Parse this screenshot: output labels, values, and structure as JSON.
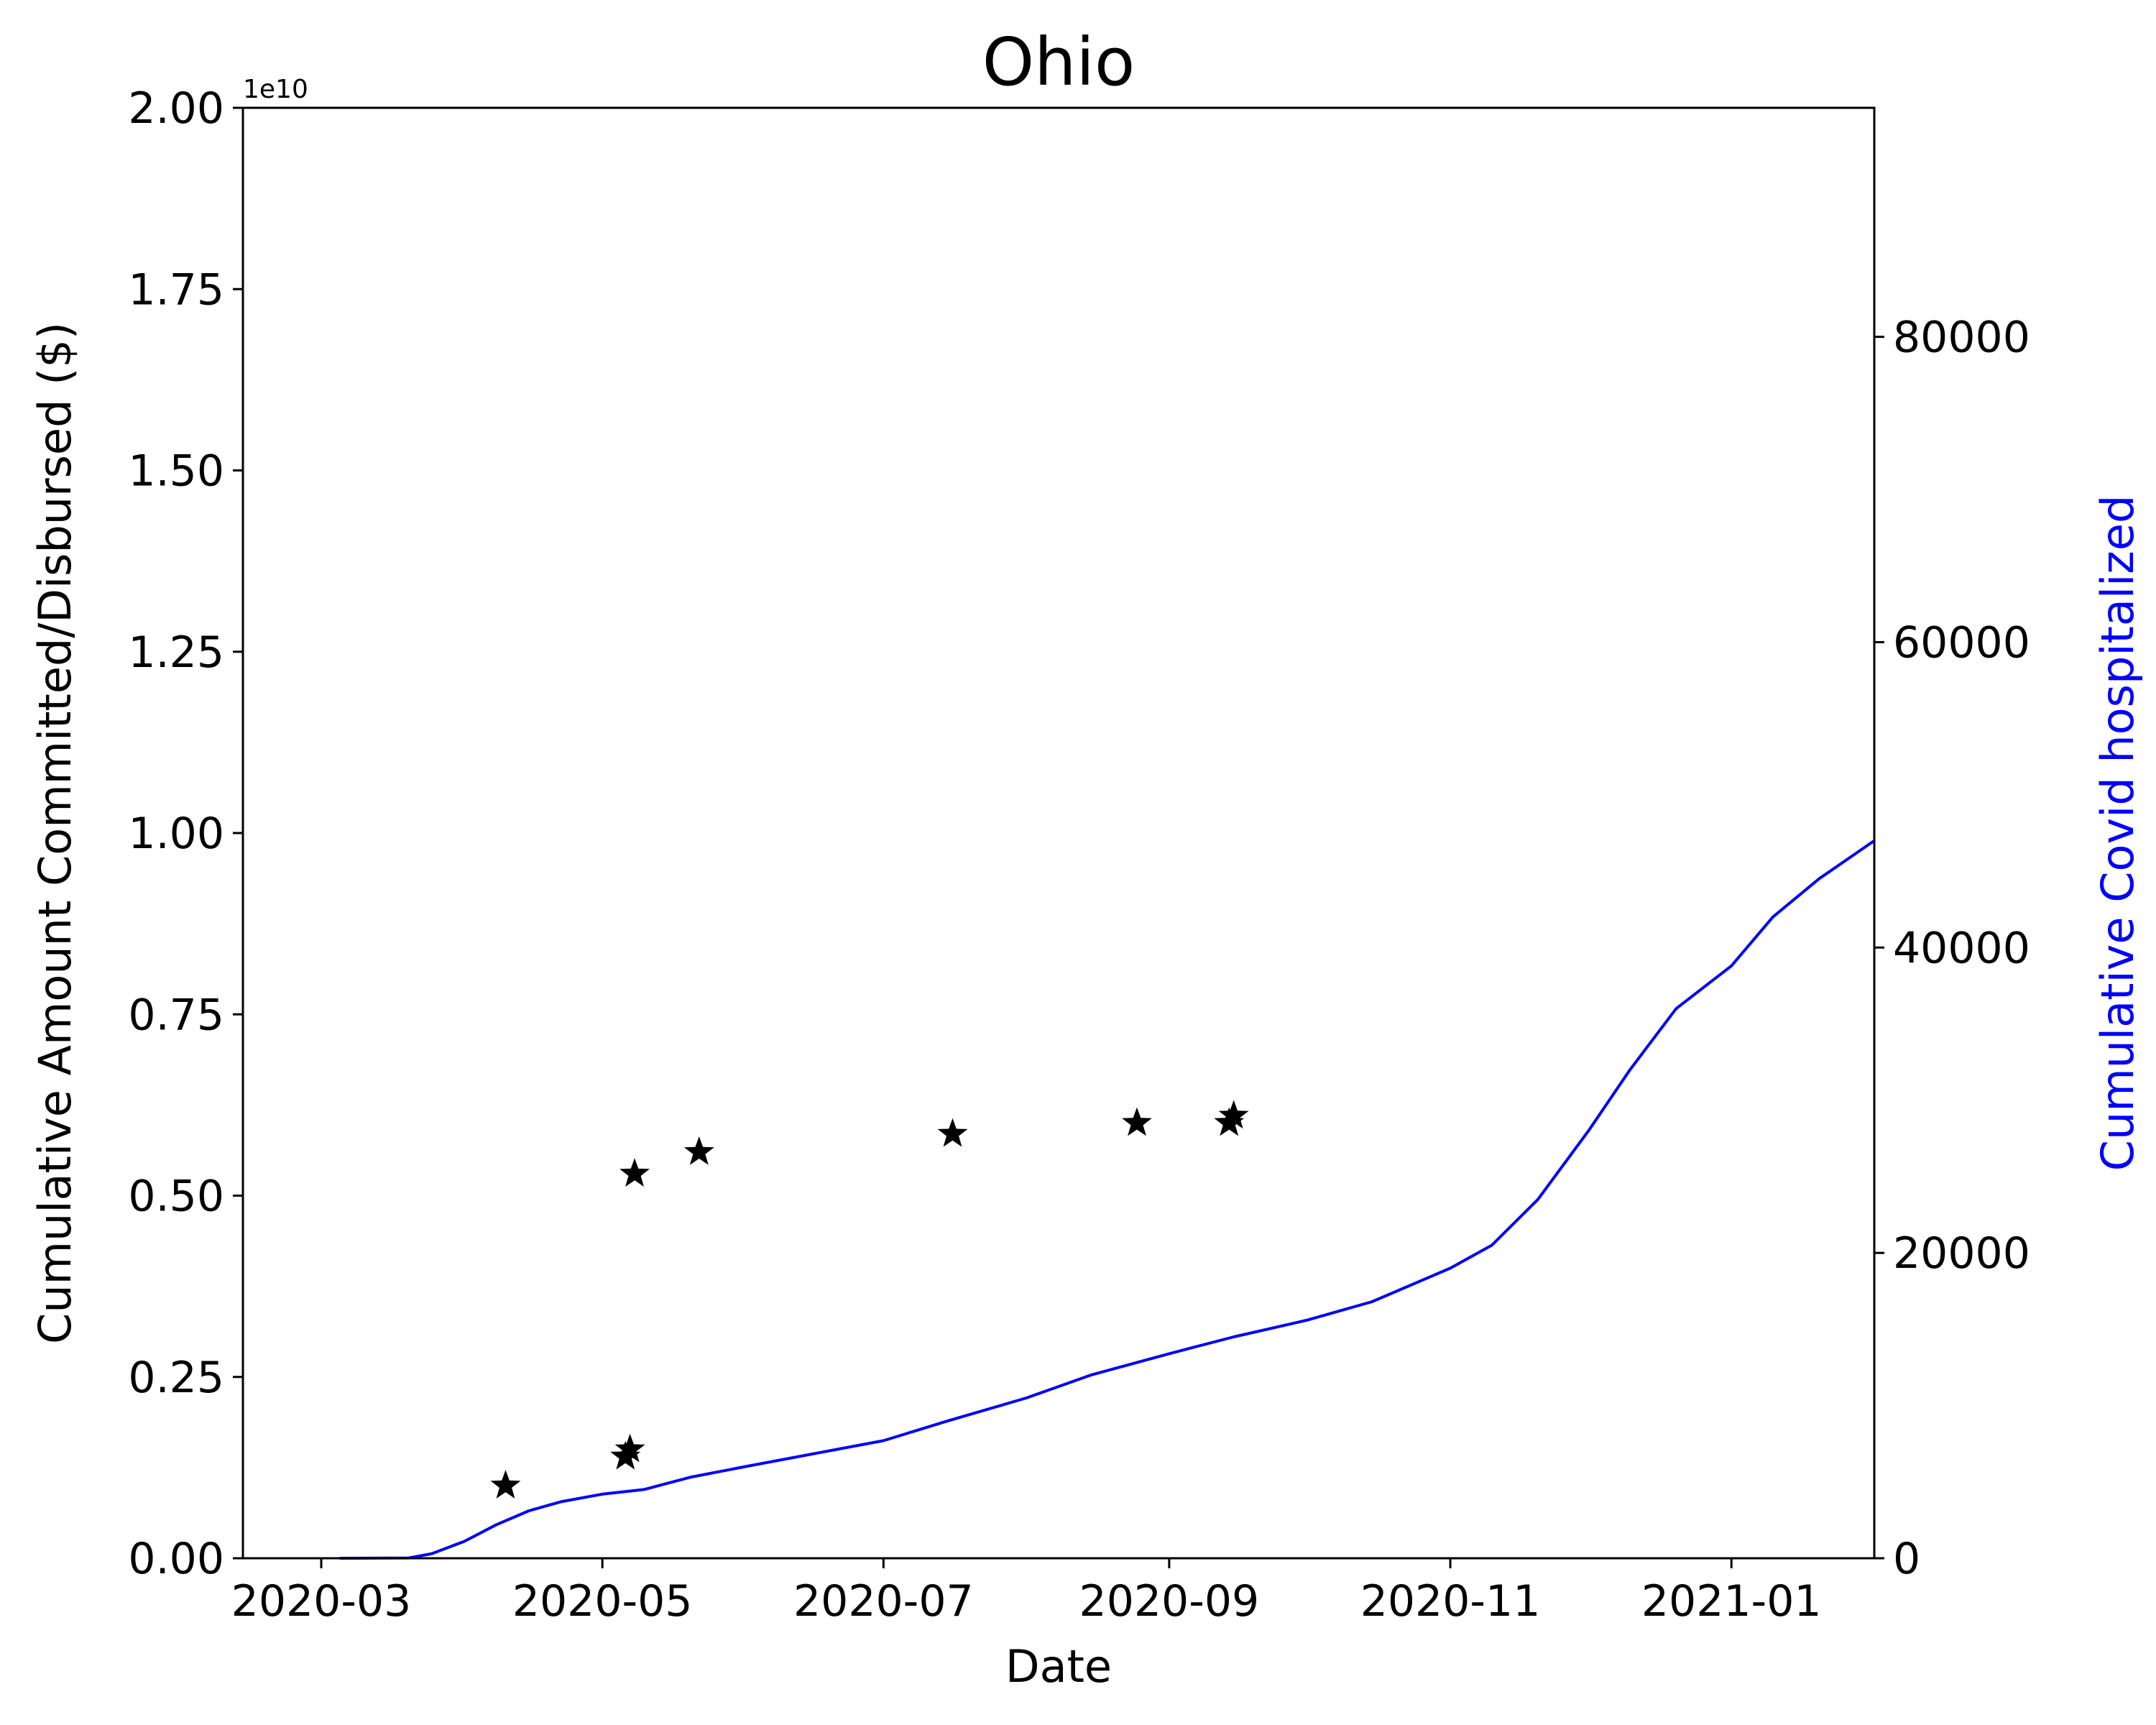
{
  "chart_data": {
    "type": "line+scatter",
    "title": "Ohio",
    "xlabel": "Date",
    "ylabel_left": "Cumulative Amount Committed/Disbursed ($)",
    "ylabel_right": "Cumulative Covid hospitalized",
    "left_axis_offset_label": "1e10",
    "xlim": [
      "2020-02-13",
      "2021-02-01"
    ],
    "x_ticks": [
      {
        "date": "2020-03-01",
        "label": "2020-03"
      },
      {
        "date": "2020-05-01",
        "label": "2020-05"
      },
      {
        "date": "2020-07-01",
        "label": "2020-07"
      },
      {
        "date": "2020-09-01",
        "label": "2020-09"
      },
      {
        "date": "2020-11-01",
        "label": "2020-11"
      },
      {
        "date": "2021-01-01",
        "label": "2021-01"
      }
    ],
    "ylim_left": [
      0,
      2.0
    ],
    "y_ticks_left": [
      {
        "value": 0.0,
        "label": "0.00"
      },
      {
        "value": 0.25,
        "label": "0.25"
      },
      {
        "value": 0.5,
        "label": "0.50"
      },
      {
        "value": 0.75,
        "label": "0.75"
      },
      {
        "value": 1.0,
        "label": "1.00"
      },
      {
        "value": 1.25,
        "label": "1.25"
      },
      {
        "value": 1.5,
        "label": "1.50"
      },
      {
        "value": 1.75,
        "label": "1.75"
      },
      {
        "value": 2.0,
        "label": "2.00"
      }
    ],
    "ylim_right": [
      0,
      95000
    ],
    "y_ticks_right": [
      {
        "value": 0,
        "label": "0"
      },
      {
        "value": 20000,
        "label": "20000"
      },
      {
        "value": 40000,
        "label": "40000"
      },
      {
        "value": 60000,
        "label": "60000"
      },
      {
        "value": 80000,
        "label": "80000"
      }
    ],
    "colors": {
      "hospitalized_line": "#0000ff",
      "stars": "#000000",
      "right_axis_label": "#0000ff"
    },
    "funding_points": [
      {
        "date": "2020-04-10",
        "value": 0.1
      },
      {
        "date": "2020-05-06",
        "value": 0.14
      },
      {
        "date": "2020-05-07",
        "value": 0.15
      },
      {
        "date": "2020-05-08",
        "value": 0.53
      },
      {
        "date": "2020-05-22",
        "value": 0.56
      },
      {
        "date": "2020-07-16",
        "value": 0.585
      },
      {
        "date": "2020-08-25",
        "value": 0.6
      },
      {
        "date": "2020-09-14",
        "value": 0.6
      },
      {
        "date": "2020-09-15",
        "value": 0.61
      }
    ],
    "hospitalized_series": [
      {
        "date": "2020-03-05",
        "value": 0
      },
      {
        "date": "2020-03-20",
        "value": 20
      },
      {
        "date": "2020-03-25",
        "value": 300
      },
      {
        "date": "2020-04-01",
        "value": 1100
      },
      {
        "date": "2020-04-08",
        "value": 2200
      },
      {
        "date": "2020-04-15",
        "value": 3100
      },
      {
        "date": "2020-04-22",
        "value": 3700
      },
      {
        "date": "2020-05-01",
        "value": 4200
      },
      {
        "date": "2020-05-10",
        "value": 4500
      },
      {
        "date": "2020-05-20",
        "value": 5300
      },
      {
        "date": "2020-06-01",
        "value": 6000
      },
      {
        "date": "2020-06-15",
        "value": 6800
      },
      {
        "date": "2020-07-01",
        "value": 7700
      },
      {
        "date": "2020-07-15",
        "value": 9000
      },
      {
        "date": "2020-08-01",
        "value": 10500
      },
      {
        "date": "2020-08-15",
        "value": 12000
      },
      {
        "date": "2020-09-01",
        "value": 13400
      },
      {
        "date": "2020-09-15",
        "value": 14500
      },
      {
        "date": "2020-10-01",
        "value": 15600
      },
      {
        "date": "2020-10-15",
        "value": 16800
      },
      {
        "date": "2020-11-01",
        "value": 19000
      },
      {
        "date": "2020-11-10",
        "value": 20500
      },
      {
        "date": "2020-11-20",
        "value": 23500
      },
      {
        "date": "2020-12-01",
        "value": 28000
      },
      {
        "date": "2020-12-10",
        "value": 32000
      },
      {
        "date": "2020-12-20",
        "value": 36000
      },
      {
        "date": "2021-01-01",
        "value": 38800
      },
      {
        "date": "2021-01-10",
        "value": 42000
      },
      {
        "date": "2021-01-20",
        "value": 44500
      },
      {
        "date": "2021-02-01",
        "value": 47000
      }
    ]
  }
}
